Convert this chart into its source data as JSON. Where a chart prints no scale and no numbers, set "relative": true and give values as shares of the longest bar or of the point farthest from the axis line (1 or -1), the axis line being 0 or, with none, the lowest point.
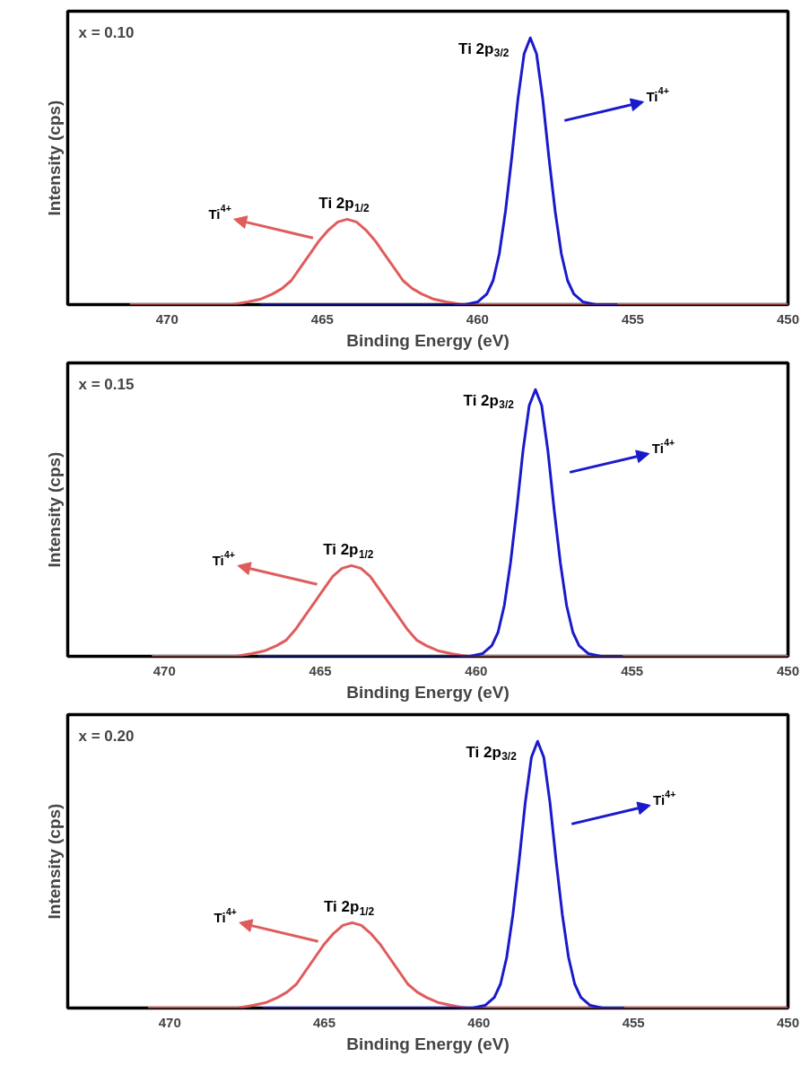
{
  "chart_data": [
    {
      "type": "line",
      "relative": true,
      "xlabel": "Binding Energy (eV)",
      "ylabel": "Intensity (cps)",
      "xlim": [
        473.2,
        450
      ],
      "xticks": [
        470,
        465,
        460,
        455,
        450
      ],
      "grid": false,
      "line_style": "solid",
      "marker": "none",
      "annotations": [
        "x = 0.10",
        "Ti 2p$_{1/2}$",
        "Ti 2p$_{3/2}$",
        "Ti$^{4+}$",
        "Ti$^{4+}$"
      ],
      "series": [
        {
          "color": "#e05c5c",
          "x": [
            471.2,
            468.5,
            467.9,
            467.4,
            467.0,
            466.6,
            466.3,
            466.0,
            465.7,
            465.4,
            465.1,
            464.8,
            464.5,
            464.2,
            463.9,
            463.6,
            463.3,
            463.0,
            462.7,
            462.4,
            462.1,
            461.8,
            461.4,
            461.0,
            460.5,
            459.9,
            450
          ],
          "values": [
            0,
            0,
            0,
            0.01,
            0.02,
            0.04,
            0.06,
            0.09,
            0.14,
            0.19,
            0.24,
            0.28,
            0.31,
            0.32,
            0.31,
            0.28,
            0.24,
            0.19,
            0.14,
            0.09,
            0.06,
            0.04,
            0.02,
            0.01,
            0,
            0,
            0
          ]
        },
        {
          "color": "#1a1acc",
          "x": [
            467.0,
            460.4,
            460.0,
            459.7,
            459.5,
            459.3,
            459.1,
            458.9,
            458.7,
            458.5,
            458.3,
            458.1,
            457.9,
            457.7,
            457.5,
            457.3,
            457.1,
            456.9,
            456.6,
            456.2,
            455.5
          ],
          "values": [
            0,
            0,
            0.01,
            0.04,
            0.09,
            0.19,
            0.35,
            0.55,
            0.77,
            0.94,
            1,
            0.94,
            0.77,
            0.55,
            0.35,
            0.19,
            0.09,
            0.04,
            0.01,
            0,
            0
          ]
        }
      ]
    },
    {
      "type": "line",
      "relative": true,
      "xlabel": "Binding Energy (eV)",
      "ylabel": "Intensity (cps)",
      "xlim": [
        473.1,
        450
      ],
      "xticks": [
        470,
        465,
        460,
        455,
        450
      ],
      "grid": false,
      "line_style": "solid",
      "marker": "none",
      "annotations": [
        "x = 0.15",
        "Ti 2p$_{1/2}$",
        "Ti 2p$_{3/2}$",
        "Ti$^{4+}$",
        "Ti$^{4+}$"
      ],
      "series": [
        {
          "color": "#e05c5c",
          "x": [
            470.4,
            468.3,
            467.7,
            467.2,
            466.8,
            466.4,
            466.1,
            465.8,
            465.5,
            465.2,
            464.9,
            464.6,
            464.3,
            464.0,
            463.7,
            463.4,
            463.1,
            462.8,
            462.5,
            462.2,
            461.9,
            461.6,
            461.2,
            460.8,
            460.3,
            459.7,
            450
          ],
          "values": [
            0,
            0,
            0,
            0.01,
            0.02,
            0.04,
            0.06,
            0.1,
            0.15,
            0.2,
            0.25,
            0.3,
            0.33,
            0.34,
            0.33,
            0.3,
            0.25,
            0.2,
            0.15,
            0.1,
            0.06,
            0.04,
            0.02,
            0.01,
            0,
            0,
            0
          ]
        },
        {
          "color": "#1a1acc",
          "x": [
            467.0,
            460.2,
            459.8,
            459.5,
            459.3,
            459.1,
            458.9,
            458.7,
            458.5,
            458.3,
            458.1,
            457.9,
            457.7,
            457.5,
            457.3,
            457.1,
            456.9,
            456.7,
            456.4,
            456.0,
            455.3
          ],
          "values": [
            0,
            0,
            0.01,
            0.04,
            0.09,
            0.19,
            0.35,
            0.55,
            0.77,
            0.94,
            1,
            0.94,
            0.77,
            0.55,
            0.35,
            0.19,
            0.09,
            0.04,
            0.01,
            0,
            0
          ]
        }
      ]
    },
    {
      "type": "line",
      "relative": true,
      "xlabel": "Binding Energy (eV)",
      "ylabel": "Intensity (cps)",
      "xlim": [
        473.3,
        450
      ],
      "xticks": [
        470,
        465,
        460,
        455,
        450
      ],
      "grid": false,
      "line_style": "solid",
      "marker": "none",
      "annotations": [
        "x = 0.20",
        "Ti 2p$_{1/2}$",
        "Ti 2p$_{3/2}$",
        "Ti$^{4+}$",
        "Ti$^{4+}$"
      ],
      "series": [
        {
          "color": "#e05c5c",
          "x": [
            470.7,
            468.4,
            467.8,
            467.3,
            466.9,
            466.5,
            466.2,
            465.9,
            465.6,
            465.3,
            465.0,
            464.7,
            464.4,
            464.1,
            463.8,
            463.5,
            463.2,
            462.9,
            462.6,
            462.3,
            462.0,
            461.7,
            461.3,
            460.9,
            460.4,
            459.8,
            450
          ],
          "values": [
            0,
            0,
            0,
            0.01,
            0.02,
            0.04,
            0.06,
            0.09,
            0.14,
            0.19,
            0.24,
            0.28,
            0.31,
            0.32,
            0.31,
            0.28,
            0.24,
            0.19,
            0.14,
            0.09,
            0.06,
            0.04,
            0.02,
            0.01,
            0,
            0,
            0
          ]
        },
        {
          "color": "#1a1acc",
          "x": [
            467.0,
            460.2,
            459.8,
            459.5,
            459.3,
            459.1,
            458.9,
            458.7,
            458.5,
            458.3,
            458.1,
            457.9,
            457.7,
            457.5,
            457.3,
            457.1,
            456.9,
            456.7,
            456.4,
            456.0,
            455.3
          ],
          "values": [
            0,
            0,
            0.01,
            0.04,
            0.09,
            0.19,
            0.35,
            0.55,
            0.77,
            0.94,
            1,
            0.94,
            0.77,
            0.55,
            0.35,
            0.19,
            0.09,
            0.04,
            0.01,
            0,
            0
          ]
        }
      ]
    }
  ]
}
